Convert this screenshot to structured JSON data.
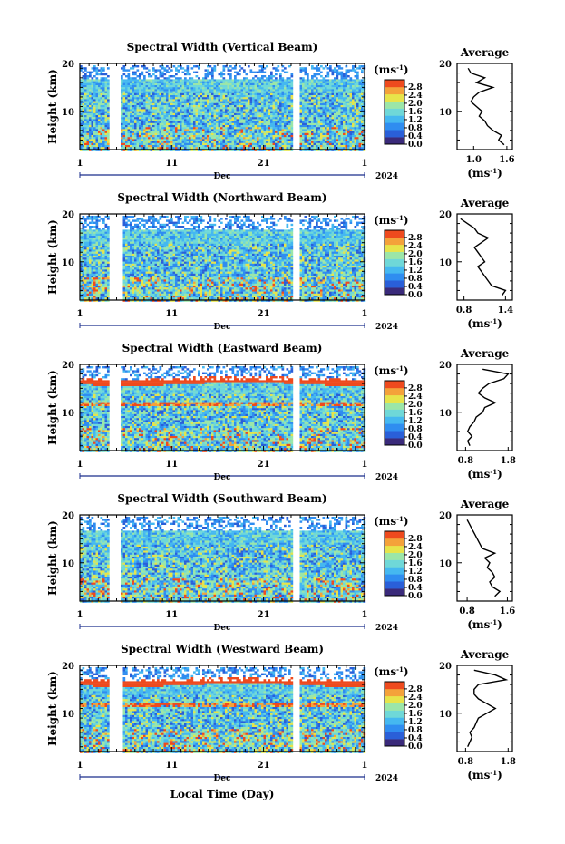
{
  "figure": {
    "xlabel": "Local Time (Day)",
    "month_label": "Dec",
    "year_label": "2024",
    "profile_title": "Average",
    "profile_xlabel": "(ms",
    "colorbar_unit": "(ms",
    "unit_exponent": "-1",
    "height_label": "Height (km)",
    "x_tick_labels": [
      "1",
      "11",
      "21",
      "1"
    ],
    "y_tick_labels": [
      "10",
      "20"
    ],
    "colorbar_ticks": [
      "0.0",
      "0.4",
      "0.8",
      "1.2",
      "1.6",
      "2.0",
      "2.4",
      "2.8"
    ],
    "colorbar_colors": [
      "#3a2a7a",
      "#2a5fd8",
      "#2f8df0",
      "#45b8f0",
      "#6fd8d8",
      "#9be6a8",
      "#e7e44a",
      "#f4a23a",
      "#ee4a1e"
    ]
  },
  "chart_data": [
    {
      "type": "heatmap",
      "title": "Spectral Width (Vertical Beam)",
      "xlabel": "Dec",
      "ylabel": "Height (km)",
      "xlim": [
        1,
        32
      ],
      "ylim": [
        2,
        20
      ],
      "colorbar": {
        "label": "(ms^-1)",
        "range": [
          0.0,
          2.8
        ]
      },
      "data_gaps_days": [
        [
          4.1,
          5.2
        ],
        [
          24.1,
          24.7
        ]
      ],
      "profile": {
        "title": "Average",
        "xlabel": "(ms^-1)",
        "xticks": [
          "1.0",
          "1.6"
        ],
        "xlim": [
          0.7,
          1.7
        ],
        "height": [
          3,
          4,
          5,
          6,
          7,
          8,
          9,
          10,
          11,
          12,
          13,
          14,
          15,
          16,
          17,
          18,
          19
        ],
        "values": [
          1.55,
          1.45,
          1.5,
          1.35,
          1.25,
          1.2,
          1.1,
          1.15,
          1.05,
          0.95,
          1.0,
          1.1,
          1.35,
          1.05,
          1.2,
          0.95,
          0.9
        ]
      }
    },
    {
      "type": "heatmap",
      "title": "Spectral Width (Northward Beam)",
      "xlabel": "Dec",
      "ylabel": "Height (km)",
      "xlim": [
        1,
        32
      ],
      "ylim": [
        2,
        20
      ],
      "colorbar": {
        "label": "(ms^-1)",
        "range": [
          0.0,
          2.8
        ]
      },
      "data_gaps_days": [
        [
          4.1,
          5.6
        ],
        [
          24.1,
          24.7
        ]
      ],
      "profile": {
        "title": "Average",
        "xlabel": "(ms^-1)",
        "xticks": [
          "0.8",
          "1.4"
        ],
        "xlim": [
          0.7,
          1.5
        ],
        "height": [
          3,
          4,
          5,
          6,
          7,
          8,
          9,
          10,
          11,
          12,
          13,
          14,
          15,
          16,
          17,
          18,
          19
        ],
        "values": [
          1.35,
          1.4,
          1.2,
          1.15,
          1.1,
          1.05,
          1.0,
          1.1,
          1.05,
          1.0,
          0.95,
          1.05,
          1.15,
          1.0,
          0.95,
          0.85,
          0.75
        ]
      }
    },
    {
      "type": "heatmap",
      "title": "Spectral Width (Eastward Beam)",
      "xlabel": "Dec",
      "ylabel": "Height (km)",
      "xlim": [
        1,
        32
      ],
      "ylim": [
        2,
        20
      ],
      "colorbar": {
        "label": "(ms^-1)",
        "range": [
          0.0,
          2.8
        ]
      },
      "data_gaps_days": [
        [
          4.1,
          5.2
        ],
        [
          24.1,
          24.7
        ]
      ],
      "profile": {
        "title": "Average",
        "xlabel": "(ms^-1)",
        "xticks": [
          "0.8",
          "1.8"
        ],
        "xlim": [
          0.6,
          1.9
        ],
        "height": [
          3,
          4,
          5,
          6,
          7,
          8,
          9,
          10,
          11,
          12,
          13,
          14,
          15,
          16,
          17,
          18,
          19
        ],
        "values": [
          0.9,
          0.85,
          0.95,
          0.85,
          0.9,
          1.0,
          1.05,
          1.2,
          1.25,
          1.5,
          1.25,
          1.1,
          1.2,
          1.35,
          1.7,
          1.8,
          1.2
        ]
      }
    },
    {
      "type": "heatmap",
      "title": "Spectral Width (Southward Beam)",
      "xlabel": "Dec",
      "ylabel": "Height (km)",
      "xlim": [
        1,
        32
      ],
      "ylim": [
        2,
        20
      ],
      "colorbar": {
        "label": "(ms^-1)",
        "range": [
          0.0,
          2.8
        ]
      },
      "data_gaps_days": [
        [
          4.1,
          5.2
        ],
        [
          24.1,
          24.7
        ]
      ],
      "profile": {
        "title": "Average",
        "xlabel": "(ms^-1)",
        "xticks": [
          "0.8",
          "1.6"
        ],
        "xlim": [
          0.6,
          1.7
        ],
        "height": [
          3,
          4,
          5,
          6,
          7,
          8,
          9,
          10,
          11,
          12,
          13,
          14,
          15,
          16,
          17,
          18,
          19
        ],
        "values": [
          1.35,
          1.45,
          1.3,
          1.25,
          1.35,
          1.3,
          1.2,
          1.25,
          1.15,
          1.35,
          1.1,
          1.05,
          1.0,
          0.95,
          0.9,
          0.85,
          0.8
        ]
      }
    },
    {
      "type": "heatmap",
      "title": "Spectral Width (Westward Beam)",
      "xlabel": "Dec",
      "ylabel": "Height (km)",
      "xlim": [
        1,
        32
      ],
      "ylim": [
        2,
        20
      ],
      "colorbar": {
        "label": "(ms^-1)",
        "range": [
          0.0,
          2.8
        ]
      },
      "data_gaps_days": [
        [
          4.1,
          5.6
        ],
        [
          24.1,
          24.7
        ]
      ],
      "profile": {
        "title": "Average",
        "xlabel": "(ms^-1)",
        "xticks": [
          "0.8",
          "1.8"
        ],
        "xlim": [
          0.6,
          1.9
        ],
        "height": [
          3,
          4,
          5,
          6,
          7,
          8,
          9,
          10,
          11,
          12,
          13,
          14,
          15,
          16,
          17,
          18,
          19
        ],
        "values": [
          0.85,
          0.9,
          0.95,
          0.9,
          1.0,
          1.05,
          1.1,
          1.3,
          1.5,
          1.3,
          1.1,
          1.0,
          1.0,
          1.1,
          1.75,
          1.5,
          1.0
        ]
      }
    }
  ]
}
